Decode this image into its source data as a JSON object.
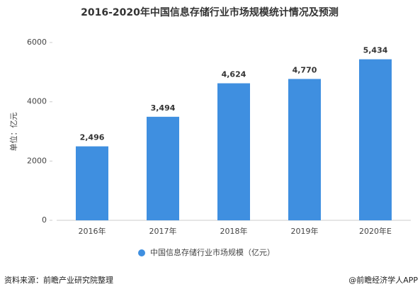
{
  "chart_data": {
    "type": "bar",
    "title": "2016-2020年中国信息存储行业市场规模统计情况及预测",
    "y_label": "单位：亿元",
    "categories": [
      "2016年",
      "2017年",
      "2018年",
      "2019年",
      "2020年E"
    ],
    "series": [
      {
        "name": "中国信息存储行业市场规模（亿元）",
        "color": "#3f8fe0",
        "values": [
          2496,
          3494,
          4624,
          4770,
          5434
        ],
        "value_labels": [
          "2,496",
          "3,494",
          "4,624",
          "4,770",
          "5,434"
        ]
      }
    ],
    "ylim": [
      0,
      6000
    ],
    "yticks": [
      0,
      2000,
      4000,
      6000
    ],
    "grid": false,
    "legend": "bottom"
  },
  "footer": {
    "source": "资料来源：前瞻产业研究院整理",
    "brand": "@前瞻经济学人APP"
  }
}
